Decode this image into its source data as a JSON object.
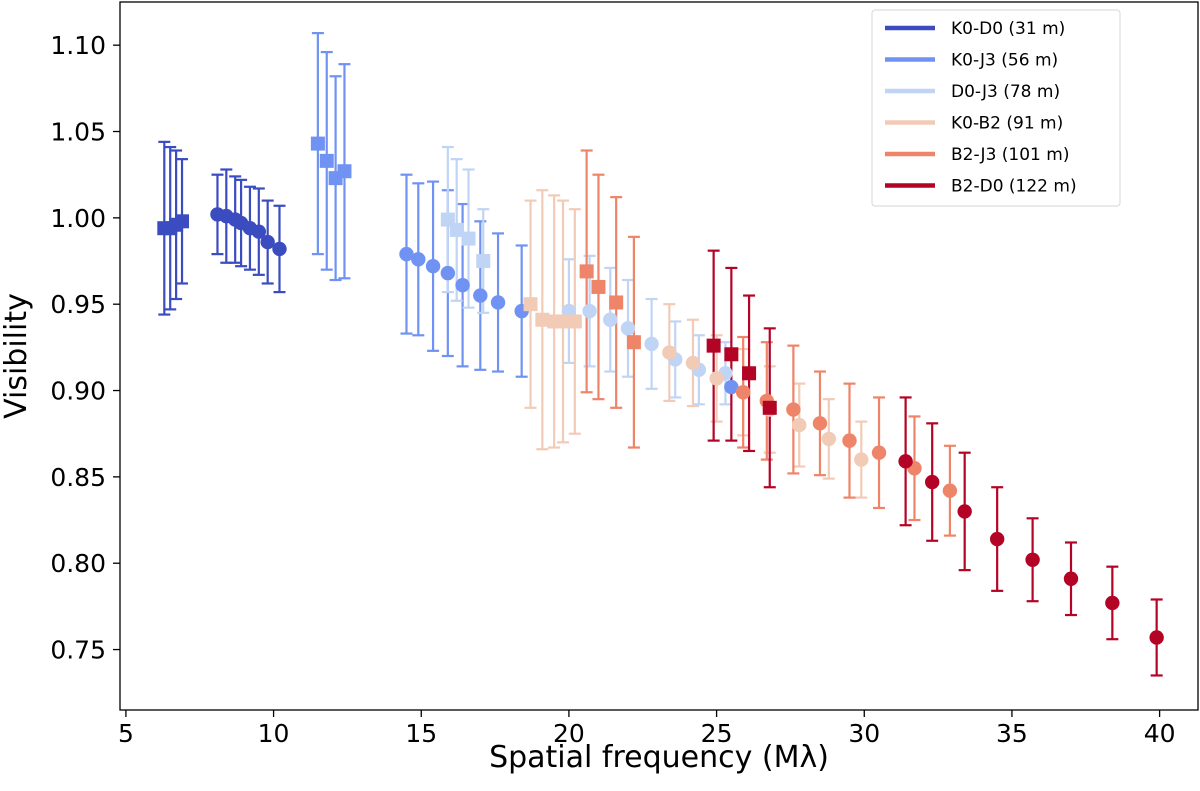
{
  "chart_data": {
    "type": "scatter",
    "xlabel": "Spatial frequency (Mλ)",
    "ylabel": "Visibility",
    "xlim": [
      4.8,
      41.3
    ],
    "ylim": [
      0.715,
      1.125
    ],
    "xticks": [
      5,
      10,
      15,
      20,
      25,
      30,
      35,
      40
    ],
    "xtick_labels": [
      "5",
      "10",
      "15",
      "20",
      "25",
      "30",
      "35",
      "40"
    ],
    "yticks": [
      0.75,
      0.8,
      0.85,
      0.9,
      0.95,
      1.0,
      1.05,
      1.1
    ],
    "ytick_labels": [
      "0.75",
      "0.80",
      "0.85",
      "0.90",
      "0.95",
      "1.00",
      "1.05",
      "1.10"
    ],
    "grid": false,
    "legend_position": "top-right",
    "marker_note": "squares and circles denote two observation sets",
    "series": [
      {
        "name": "K0-D0 (31 m)",
        "color": "#3b4cc0",
        "points": [
          {
            "x": 6.3,
            "y": 0.994,
            "err": 0.05,
            "marker": "square"
          },
          {
            "x": 6.5,
            "y": 0.994,
            "err": 0.047,
            "marker": "square"
          },
          {
            "x": 6.7,
            "y": 0.996,
            "err": 0.043,
            "marker": "square"
          },
          {
            "x": 6.9,
            "y": 0.998,
            "err": 0.036,
            "marker": "square"
          },
          {
            "x": 8.1,
            "y": 1.002,
            "err": 0.023,
            "marker": "circle"
          },
          {
            "x": 8.4,
            "y": 1.001,
            "err": 0.027,
            "marker": "circle"
          },
          {
            "x": 8.7,
            "y": 0.999,
            "err": 0.025,
            "marker": "circle"
          },
          {
            "x": 8.9,
            "y": 0.997,
            "err": 0.025,
            "marker": "circle"
          },
          {
            "x": 9.2,
            "y": 0.994,
            "err": 0.024,
            "marker": "circle"
          },
          {
            "x": 9.5,
            "y": 0.992,
            "err": 0.025,
            "marker": "circle"
          },
          {
            "x": 9.8,
            "y": 0.986,
            "err": 0.024,
            "marker": "circle"
          },
          {
            "x": 10.2,
            "y": 0.982,
            "err": 0.025,
            "marker": "circle"
          }
        ]
      },
      {
        "name": "K0-J3 (56 m)",
        "color": "#6f92f3",
        "points": [
          {
            "x": 11.5,
            "y": 1.043,
            "err": 0.064,
            "marker": "square"
          },
          {
            "x": 11.8,
            "y": 1.033,
            "err": 0.063,
            "marker": "square"
          },
          {
            "x": 12.1,
            "y": 1.023,
            "err": 0.059,
            "marker": "square"
          },
          {
            "x": 12.4,
            "y": 1.027,
            "err": 0.062,
            "marker": "square"
          },
          {
            "x": 14.5,
            "y": 0.979,
            "err": 0.046,
            "marker": "circle"
          },
          {
            "x": 14.9,
            "y": 0.976,
            "err": 0.044,
            "marker": "circle"
          },
          {
            "x": 15.4,
            "y": 0.972,
            "err": 0.049,
            "marker": "circle"
          },
          {
            "x": 15.9,
            "y": 0.968,
            "err": 0.048,
            "marker": "circle"
          },
          {
            "x": 16.4,
            "y": 0.961,
            "err": 0.047,
            "marker": "circle"
          },
          {
            "x": 17.0,
            "y": 0.955,
            "err": 0.043,
            "marker": "circle"
          },
          {
            "x": 17.6,
            "y": 0.951,
            "err": 0.04,
            "marker": "circle"
          },
          {
            "x": 18.4,
            "y": 0.946,
            "err": 0.038,
            "marker": "circle"
          },
          {
            "x": 25.5,
            "y": 0.902,
            "err": 0.0,
            "marker": "circle"
          }
        ]
      },
      {
        "name": "D0-J3 (78 m)",
        "color": "#c0d4f5",
        "points": [
          {
            "x": 15.9,
            "y": 0.999,
            "err": 0.042,
            "marker": "square"
          },
          {
            "x": 16.2,
            "y": 0.993,
            "err": 0.041,
            "marker": "square"
          },
          {
            "x": 16.6,
            "y": 0.988,
            "err": 0.04,
            "marker": "square"
          },
          {
            "x": 17.1,
            "y": 0.975,
            "err": 0.03,
            "marker": "square"
          },
          {
            "x": 20.0,
            "y": 0.946,
            "err": 0.03,
            "marker": "circle"
          },
          {
            "x": 20.7,
            "y": 0.946,
            "err": 0.032,
            "marker": "circle"
          },
          {
            "x": 21.4,
            "y": 0.941,
            "err": 0.03,
            "marker": "circle"
          },
          {
            "x": 22.0,
            "y": 0.936,
            "err": 0.028,
            "marker": "circle"
          },
          {
            "x": 22.8,
            "y": 0.927,
            "err": 0.026,
            "marker": "circle"
          },
          {
            "x": 23.6,
            "y": 0.918,
            "err": 0.022,
            "marker": "circle"
          },
          {
            "x": 24.4,
            "y": 0.912,
            "err": 0.02,
            "marker": "circle"
          },
          {
            "x": 25.3,
            "y": 0.91,
            "err": 0.018,
            "marker": "circle"
          }
        ]
      },
      {
        "name": "K0-B2 (91 m)",
        "color": "#f2cbb7",
        "points": [
          {
            "x": 18.7,
            "y": 0.95,
            "err": 0.06,
            "marker": "square"
          },
          {
            "x": 19.1,
            "y": 0.941,
            "err": 0.075,
            "marker": "square"
          },
          {
            "x": 19.5,
            "y": 0.94,
            "err": 0.073,
            "marker": "square"
          },
          {
            "x": 19.8,
            "y": 0.94,
            "err": 0.07,
            "marker": "square"
          },
          {
            "x": 20.2,
            "y": 0.94,
            "err": 0.065,
            "marker": "square"
          },
          {
            "x": 23.4,
            "y": 0.922,
            "err": 0.028,
            "marker": "circle"
          },
          {
            "x": 24.2,
            "y": 0.916,
            "err": 0.025,
            "marker": "circle"
          },
          {
            "x": 25.0,
            "y": 0.907,
            "err": 0.025,
            "marker": "circle"
          },
          {
            "x": 25.9,
            "y": 0.899,
            "err": 0.025,
            "marker": "circle"
          },
          {
            "x": 26.8,
            "y": 0.889,
            "err": 0.025,
            "marker": "circle"
          },
          {
            "x": 27.8,
            "y": 0.88,
            "err": 0.024,
            "marker": "circle"
          },
          {
            "x": 28.8,
            "y": 0.872,
            "err": 0.023,
            "marker": "circle"
          },
          {
            "x": 29.9,
            "y": 0.86,
            "err": 0.022,
            "marker": "circle"
          }
        ]
      },
      {
        "name": "B2-J3 (101 m)",
        "color": "#ee8468",
        "points": [
          {
            "x": 20.6,
            "y": 0.969,
            "err": 0.07,
            "marker": "square"
          },
          {
            "x": 21.0,
            "y": 0.96,
            "err": 0.065,
            "marker": "square"
          },
          {
            "x": 21.6,
            "y": 0.951,
            "err": 0.061,
            "marker": "square"
          },
          {
            "x": 22.2,
            "y": 0.928,
            "err": 0.061,
            "marker": "square"
          },
          {
            "x": 25.9,
            "y": 0.899,
            "err": 0.032,
            "marker": "circle"
          },
          {
            "x": 26.7,
            "y": 0.894,
            "err": 0.034,
            "marker": "circle"
          },
          {
            "x": 27.6,
            "y": 0.889,
            "err": 0.037,
            "marker": "circle"
          },
          {
            "x": 28.5,
            "y": 0.881,
            "err": 0.03,
            "marker": "circle"
          },
          {
            "x": 29.5,
            "y": 0.871,
            "err": 0.033,
            "marker": "circle"
          },
          {
            "x": 30.5,
            "y": 0.864,
            "err": 0.032,
            "marker": "circle"
          },
          {
            "x": 31.7,
            "y": 0.855,
            "err": 0.03,
            "marker": "circle"
          },
          {
            "x": 32.9,
            "y": 0.842,
            "err": 0.026,
            "marker": "circle"
          }
        ]
      },
      {
        "name": "B2-D0 (122 m)",
        "color": "#b40426",
        "points": [
          {
            "x": 24.9,
            "y": 0.926,
            "err": 0.055,
            "marker": "square"
          },
          {
            "x": 25.5,
            "y": 0.921,
            "err": 0.05,
            "marker": "square"
          },
          {
            "x": 26.1,
            "y": 0.91,
            "err": 0.045,
            "marker": "square"
          },
          {
            "x": 26.8,
            "y": 0.89,
            "err": 0.046,
            "marker": "square"
          },
          {
            "x": 31.4,
            "y": 0.859,
            "err": 0.037,
            "marker": "circle"
          },
          {
            "x": 32.3,
            "y": 0.847,
            "err": 0.034,
            "marker": "circle"
          },
          {
            "x": 33.4,
            "y": 0.83,
            "err": 0.034,
            "marker": "circle"
          },
          {
            "x": 34.5,
            "y": 0.814,
            "err": 0.03,
            "marker": "circle"
          },
          {
            "x": 35.7,
            "y": 0.802,
            "err": 0.024,
            "marker": "circle"
          },
          {
            "x": 37.0,
            "y": 0.791,
            "err": 0.021,
            "marker": "circle"
          },
          {
            "x": 38.4,
            "y": 0.777,
            "err": 0.021,
            "marker": "circle"
          },
          {
            "x": 39.9,
            "y": 0.757,
            "err": 0.022,
            "marker": "circle"
          }
        ]
      }
    ]
  }
}
